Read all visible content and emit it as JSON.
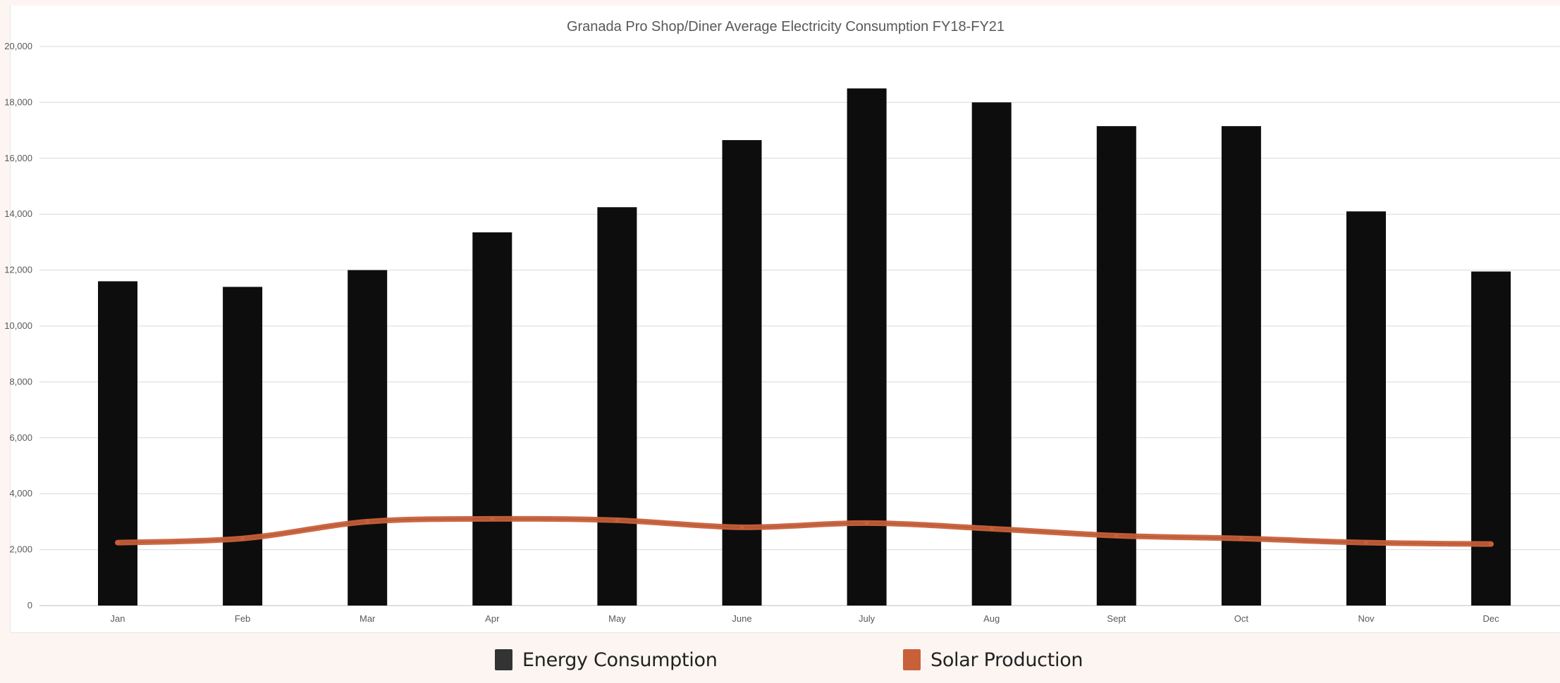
{
  "chart_data": {
    "type": "bar",
    "title": "Granada Pro Shop/Diner Average Electricity Consumption FY18-FY21",
    "xlabel": "",
    "ylabel": "",
    "categories": [
      "Jan",
      "Feb",
      "Mar",
      "Apr",
      "May",
      "June",
      "July",
      "Aug",
      "Sept",
      "Oct",
      "Nov",
      "Dec"
    ],
    "ylim": [
      0,
      20000
    ],
    "yticks": [
      0,
      2000,
      4000,
      6000,
      8000,
      10000,
      12000,
      14000,
      16000,
      18000,
      20000
    ],
    "ytick_labels": [
      "0",
      "2,000",
      "4,000",
      "6,000",
      "8,000",
      "10,000",
      "12,000",
      "14,000",
      "16,000",
      "18,000",
      "20,000"
    ],
    "grid": true,
    "legend_position": "bottom",
    "series": [
      {
        "name": "Energy Consumption",
        "type": "bar",
        "color": "#0d0d0d",
        "values": [
          11600,
          11400,
          12000,
          13350,
          14250,
          16650,
          18500,
          18000,
          17150,
          17150,
          14100,
          11950
        ]
      },
      {
        "name": "Solar Production",
        "type": "line",
        "color": "#c8603a",
        "values": [
          2250,
          2400,
          3000,
          3100,
          3050,
          2800,
          2950,
          2750,
          2500,
          2400,
          2250,
          2200
        ]
      }
    ]
  },
  "legend": {
    "items": [
      {
        "label": "Energy Consumption",
        "color": "#333333"
      },
      {
        "label": "Solar Production",
        "color": "#c8603a"
      }
    ]
  }
}
